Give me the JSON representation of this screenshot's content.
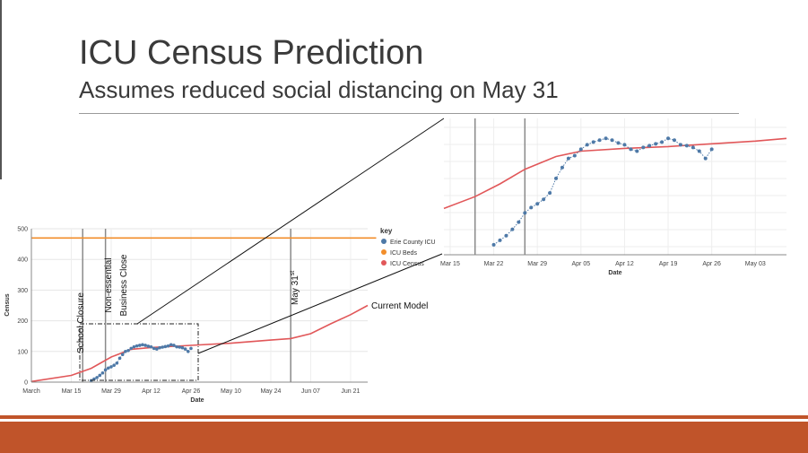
{
  "slide": {
    "title": "ICU Census Prediction",
    "subtitle": "Assumes reduced social distancing on May 31",
    "accent_color": "#c0542a"
  },
  "annotations": {
    "school_closure": "School Closure",
    "non_essential_line1": "Non-essential",
    "non_essential_line2": "Business Close",
    "may31": "May 31",
    "may31_sup": "st",
    "current_model": "Current Model"
  },
  "legend": {
    "title": "key",
    "items": [
      {
        "label": "Erie County ICU",
        "color": "#4e79a7"
      },
      {
        "label": "ICU Beds",
        "color": "#f28e2b"
      },
      {
        "label": "ICU Census",
        "color": "#e15759"
      }
    ]
  },
  "chart_data": [
    {
      "type": "line",
      "xlabel": "Date",
      "ylabel": "Census",
      "ylim": [
        0,
        500
      ],
      "y_ticks": [
        0,
        100,
        200,
        300,
        400,
        500
      ],
      "x_ticks": [
        "March",
        "Mar 15",
        "Mar 29",
        "Apr 12",
        "Apr 26",
        "May 10",
        "May 24",
        "Jun 07",
        "Jun 21"
      ],
      "grid": true,
      "series": [
        {
          "name": "ICU Beds",
          "color": "#f28e2b",
          "x": [
            "Mar 01",
            "Jun 30"
          ],
          "y": [
            470,
            470
          ]
        },
        {
          "name": "ICU Census",
          "color": "#e15759",
          "x": [
            "Mar 01",
            "Mar 15",
            "Mar 22",
            "Mar 29",
            "Apr 05",
            "Apr 12",
            "Apr 26",
            "May 10",
            "May 24",
            "May 31",
            "Jun 07",
            "Jun 14",
            "Jun 21",
            "Jun 27"
          ],
          "y": [
            2,
            22,
            45,
            82,
            107,
            113,
            120,
            127,
            137,
            142,
            158,
            190,
            220,
            250
          ]
        },
        {
          "name": "Erie County ICU",
          "color": "#4e79a7",
          "x": [
            "Mar 22",
            "Mar 23",
            "Mar 24",
            "Mar 25",
            "Mar 26",
            "Mar 27",
            "Mar 28",
            "Mar 29",
            "Mar 30",
            "Mar 31",
            "Apr 01",
            "Apr 02",
            "Apr 03",
            "Apr 04",
            "Apr 05",
            "Apr 06",
            "Apr 07",
            "Apr 08",
            "Apr 09",
            "Apr 10",
            "Apr 11",
            "Apr 12",
            "Apr 13",
            "Apr 14",
            "Apr 15",
            "Apr 16",
            "Apr 17",
            "Apr 18",
            "Apr 19",
            "Apr 20",
            "Apr 21",
            "Apr 22",
            "Apr 23",
            "Apr 24",
            "Apr 25",
            "Apr 26"
          ],
          "y": [
            5,
            10,
            15,
            22,
            30,
            40,
            46,
            50,
            55,
            62,
            78,
            90,
            100,
            103,
            110,
            115,
            118,
            120,
            122,
            120,
            117,
            115,
            110,
            108,
            112,
            114,
            116,
            118,
            122,
            120,
            115,
            114,
            112,
            108,
            100,
            110
          ]
        }
      ],
      "vlines": [
        "Mar 19",
        "Mar 27",
        "May 31"
      ]
    },
    {
      "type": "line",
      "xlabel": "Date",
      "x_ticks": [
        "Mar 15",
        "Mar 22",
        "Mar 29",
        "Apr 05",
        "Apr 12",
        "Apr 19",
        "Apr 26",
        "May 03"
      ],
      "grid": true,
      "series": [
        {
          "name": "ICU Census",
          "color": "#e15759",
          "x": [
            "Mar 14",
            "Mar 19",
            "Mar 23",
            "Mar 27",
            "Apr 01",
            "Apr 05",
            "Apr 12",
            "Apr 19",
            "Apr 26",
            "May 03",
            "May 08"
          ],
          "y": [
            45,
            58,
            72,
            88,
            102,
            108,
            111,
            113,
            116,
            119,
            122
          ]
        },
        {
          "name": "Erie County ICU",
          "color": "#4e79a7",
          "x": [
            "Mar 22",
            "Mar 23",
            "Mar 24",
            "Mar 25",
            "Mar 26",
            "Mar 27",
            "Mar 28",
            "Mar 29",
            "Mar 30",
            "Mar 31",
            "Apr 01",
            "Apr 02",
            "Apr 03",
            "Apr 04",
            "Apr 05",
            "Apr 06",
            "Apr 07",
            "Apr 08",
            "Apr 09",
            "Apr 10",
            "Apr 11",
            "Apr 12",
            "Apr 13",
            "Apr 14",
            "Apr 15",
            "Apr 16",
            "Apr 17",
            "Apr 18",
            "Apr 19",
            "Apr 20",
            "Apr 21",
            "Apr 22",
            "Apr 23",
            "Apr 24",
            "Apr 25",
            "Apr 26"
          ],
          "y": [
            5,
            10,
            15,
            22,
            30,
            40,
            46,
            50,
            55,
            62,
            78,
            90,
            100,
            103,
            110,
            115,
            118,
            120,
            122,
            120,
            117,
            115,
            110,
            108,
            112,
            114,
            116,
            118,
            122,
            120,
            115,
            114,
            112,
            108,
            100,
            110
          ]
        }
      ],
      "vlines": [
        "Mar 19",
        "Mar 27"
      ]
    }
  ]
}
